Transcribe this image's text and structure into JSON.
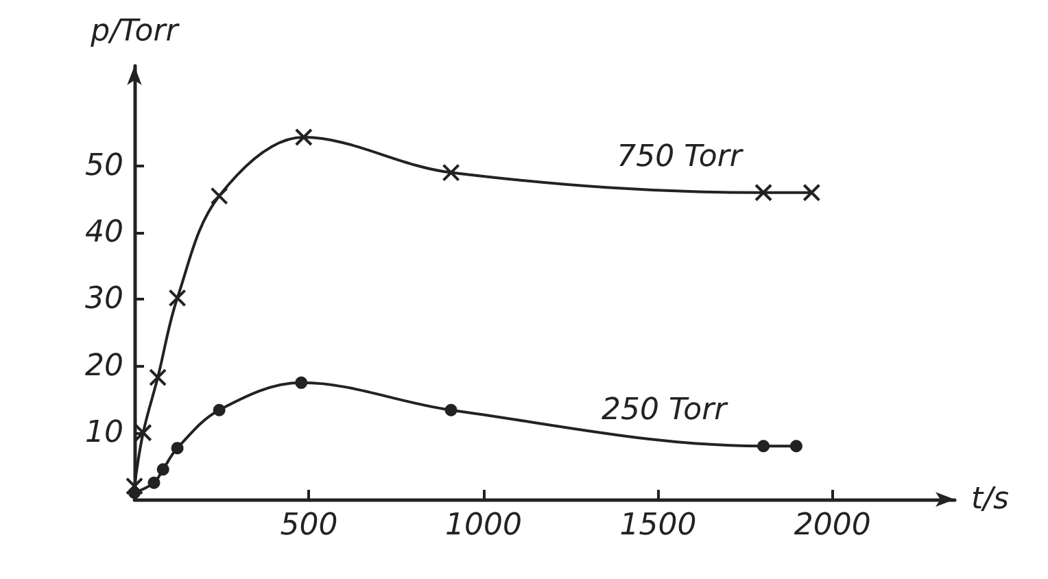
{
  "chart_data": {
    "type": "line",
    "xlabel": "t/s",
    "ylabel": "p/Torr",
    "xlim": [
      0,
      2350
    ],
    "ylim": [
      0,
      65
    ],
    "xticks": [
      500,
      1000,
      1500,
      2000
    ],
    "yticks": [
      10,
      20,
      30,
      40,
      50
    ],
    "grid": false,
    "legend": false,
    "line_style": "solid",
    "series": [
      {
        "name": "750 Torr",
        "color": "#222222",
        "marker": "cross",
        "x": [
          0,
          25,
          67,
          123,
          243,
          485,
          907,
          1802,
          1940
        ],
        "values": [
          2,
          10,
          18.3,
          30.2,
          45.5,
          54.3,
          49,
          46,
          46
        ]
      },
      {
        "name": "250 Torr",
        "color": "#222222",
        "marker": "circle",
        "x": [
          0,
          56,
          82,
          123,
          243,
          478,
          907,
          1802,
          1896
        ],
        "values": [
          1,
          2.5,
          4.5,
          7.7,
          13.4,
          17.5,
          13.4,
          8,
          8
        ]
      }
    ]
  }
}
